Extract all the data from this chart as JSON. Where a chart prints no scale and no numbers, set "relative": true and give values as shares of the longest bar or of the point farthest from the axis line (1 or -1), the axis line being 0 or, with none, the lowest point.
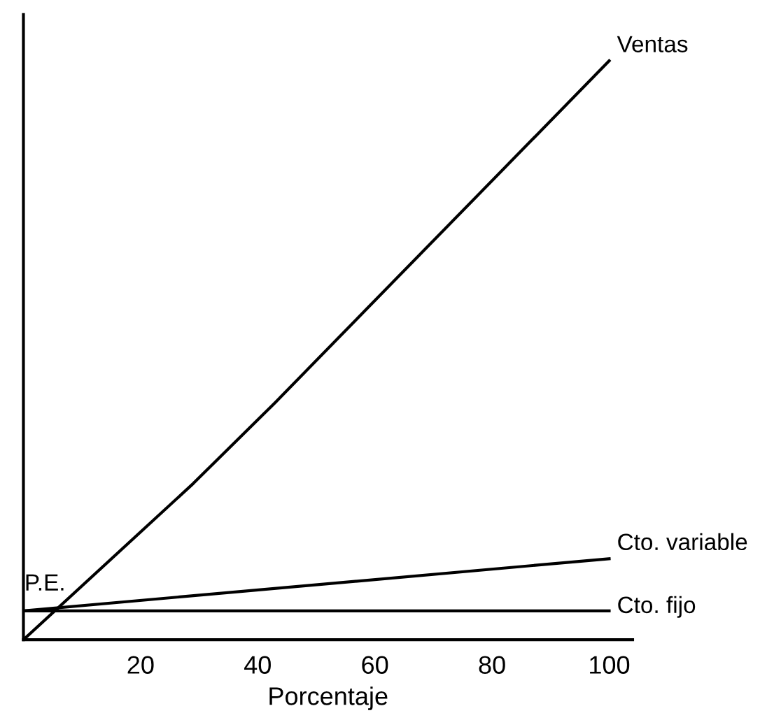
{
  "chart_data": {
    "type": "line",
    "xlabel": "Porcentaje",
    "relative": true,
    "xlim": [
      0,
      104
    ],
    "xticks": [
      20,
      40,
      60,
      80,
      100
    ],
    "series": [
      {
        "name": "Ventas",
        "color": "#000000",
        "x": [
          0,
          29,
          43,
          100
        ],
        "values": [
          0,
          0.27,
          0.41,
          1
        ]
      },
      {
        "name": "Cto. variable",
        "color": "#000000",
        "x": [
          0,
          100
        ],
        "values": [
          0.05,
          0.14
        ]
      },
      {
        "name": "Cto. fijo",
        "color": "#000000",
        "x": [
          0,
          100
        ],
        "values": [
          0.05,
          0.05
        ]
      }
    ],
    "annotations": [
      {
        "text": "P.E.",
        "x": 5,
        "y": 0.05
      }
    ],
    "grid": false,
    "marker": "none",
    "line_style": "solid"
  }
}
